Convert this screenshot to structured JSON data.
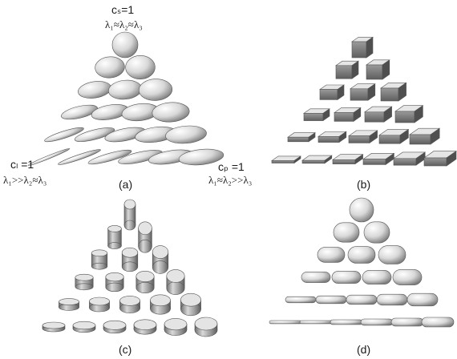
{
  "figure": {
    "panels": [
      {
        "id": "a",
        "label": "(a)",
        "shape": "ellipsoid"
      },
      {
        "id": "b",
        "label": "(b)",
        "shape": "box"
      },
      {
        "id": "c",
        "label": "(c)",
        "shape": "cylinder"
      },
      {
        "id": "d",
        "label": "(d)",
        "shape": "superquadric"
      }
    ],
    "annotations": {
      "top": {
        "main": "cₛ=1",
        "eq": "λ₁≈λ₂≈λ₃"
      },
      "left": {
        "main": "cₗ =1",
        "eq": "λ₁>>λ₂≈λ₃"
      },
      "right": {
        "main": "cₚ =1",
        "eq": "λ₁≈λ₂>>λ₃"
      }
    },
    "colors": {
      "fill_light": "#f4f4f4",
      "fill_mid": "#cfcfcf",
      "fill_dark": "#7a7a7a",
      "stroke": "#555555"
    }
  }
}
